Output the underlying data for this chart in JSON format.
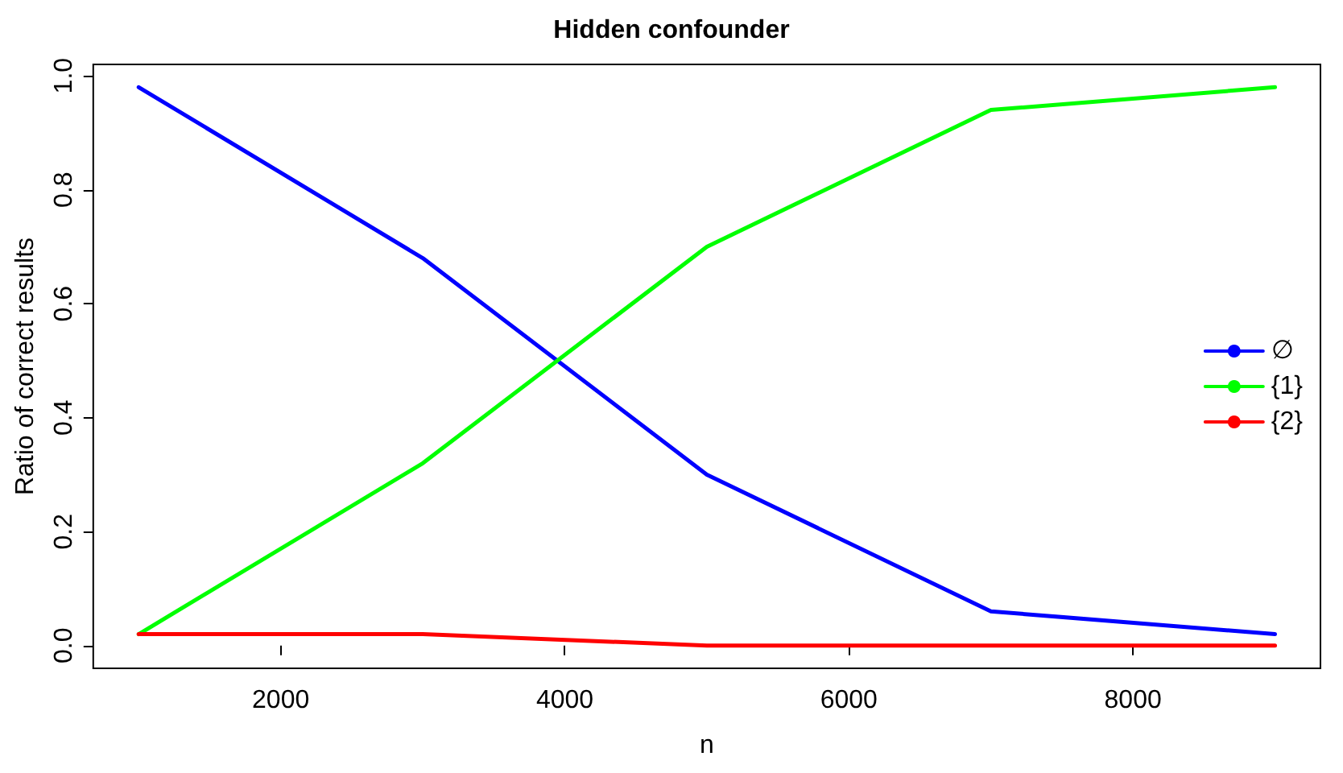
{
  "chart_data": {
    "type": "line",
    "title": "Hidden confounder",
    "xlabel": "n",
    "ylabel": "Ratio of correct results",
    "x": [
      1000,
      3000,
      5000,
      7000,
      9000
    ],
    "series": [
      {
        "name": "∅",
        "color": "#0000ff",
        "values": [
          0.98,
          0.68,
          0.3,
          0.06,
          0.02
        ]
      },
      {
        "name": "{1}",
        "color": "#00ff00",
        "values": [
          0.02,
          0.32,
          0.7,
          0.94,
          0.98
        ]
      },
      {
        "name": "{2}",
        "color": "#ff0000",
        "values": [
          0.02,
          0.02,
          0.0,
          0.0,
          0.0
        ]
      }
    ],
    "xlim": [
      680,
      9320
    ],
    "ylim": [
      -0.04,
      1.02
    ],
    "xticks": [
      2000,
      4000,
      6000,
      8000
    ],
    "yticks": [
      {
        "value": 0,
        "label": "0.0"
      },
      {
        "value": 0.2,
        "label": "0.2"
      },
      {
        "value": 0.4,
        "label": "0.4"
      },
      {
        "value": 0.6,
        "label": "0.6"
      },
      {
        "value": 0.8,
        "label": "0.8"
      },
      {
        "value": 1,
        "label": "1.0"
      }
    ],
    "legend": "right",
    "marker": "none",
    "line_style": "solid"
  }
}
